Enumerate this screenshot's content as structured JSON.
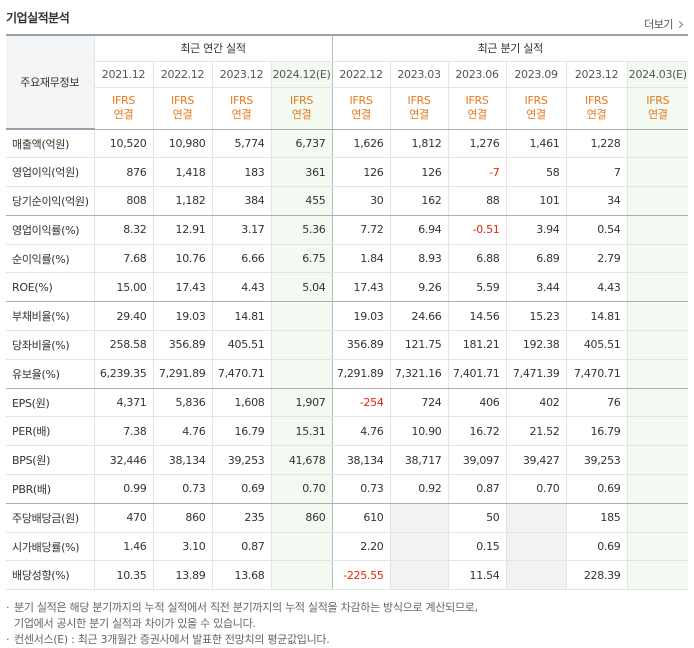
{
  "title": "기업실적분석",
  "more_label": "더보기",
  "row_header_label": "주요재무정보",
  "annual_group_label": "최근 연간 실적",
  "quarter_group_label": "최근 분기 실적",
  "periods": [
    {
      "date": "2021.12",
      "ifrs": "IFRS",
      "basis": "연결",
      "est": false
    },
    {
      "date": "2022.12",
      "ifrs": "IFRS",
      "basis": "연결",
      "est": false
    },
    {
      "date": "2023.12",
      "ifrs": "IFRS",
      "basis": "연결",
      "est": false
    },
    {
      "date": "2024.12(E)",
      "ifrs": "IFRS",
      "basis": "연결",
      "est": true
    },
    {
      "date": "2022.12",
      "ifrs": "IFRS",
      "basis": "연결",
      "est": false
    },
    {
      "date": "2023.03",
      "ifrs": "IFRS",
      "basis": "연결",
      "est": false
    },
    {
      "date": "2023.06",
      "ifrs": "IFRS",
      "basis": "연결",
      "est": false
    },
    {
      "date": "2023.09",
      "ifrs": "IFRS",
      "basis": "연결",
      "est": false
    },
    {
      "date": "2023.12",
      "ifrs": "IFRS",
      "basis": "연결",
      "est": false
    },
    {
      "date": "2024.03(E)",
      "ifrs": "IFRS",
      "basis": "연결",
      "est": true
    }
  ],
  "rows": [
    {
      "label": "매출액(억원)",
      "values": [
        "10,520",
        "10,980",
        "5,774",
        "6,737",
        "1,626",
        "1,812",
        "1,276",
        "1,461",
        "1,228",
        ""
      ]
    },
    {
      "label": "영업이익(억원)",
      "values": [
        "876",
        "1,418",
        "183",
        "361",
        "126",
        "126",
        "-7",
        "58",
        "7",
        ""
      ]
    },
    {
      "label": "당기순이익(억원)",
      "values": [
        "808",
        "1,182",
        "384",
        "455",
        "30",
        "162",
        "88",
        "101",
        "34",
        ""
      ],
      "section_end": true
    },
    {
      "label": "영업이익률(%)",
      "values": [
        "8.32",
        "12.91",
        "3.17",
        "5.36",
        "7.72",
        "6.94",
        "-0.51",
        "3.94",
        "0.54",
        ""
      ]
    },
    {
      "label": "순이익률(%)",
      "values": [
        "7.68",
        "10.76",
        "6.66",
        "6.75",
        "1.84",
        "8.93",
        "6.88",
        "6.89",
        "2.79",
        ""
      ]
    },
    {
      "label": "ROE(%)",
      "values": [
        "15.00",
        "17.43",
        "4.43",
        "5.04",
        "17.43",
        "9.26",
        "5.59",
        "3.44",
        "4.43",
        ""
      ],
      "section_end": true
    },
    {
      "label": "부채비율(%)",
      "values": [
        "29.40",
        "19.03",
        "14.81",
        "",
        "19.03",
        "24.66",
        "14.56",
        "15.23",
        "14.81",
        ""
      ]
    },
    {
      "label": "당좌비율(%)",
      "values": [
        "258.58",
        "356.89",
        "405.51",
        "",
        "356.89",
        "121.75",
        "181.21",
        "192.38",
        "405.51",
        ""
      ]
    },
    {
      "label": "유보율(%)",
      "values": [
        "6,239.35",
        "7,291.89",
        "7,470.71",
        "",
        "7,291.89",
        "7,321.16",
        "7,401.71",
        "7,471.39",
        "7,470.71",
        ""
      ],
      "section_end": true
    },
    {
      "label": "EPS(원)",
      "values": [
        "4,371",
        "5,836",
        "1,608",
        "1,907",
        "-254",
        "724",
        "406",
        "402",
        "76",
        ""
      ]
    },
    {
      "label": "PER(배)",
      "values": [
        "7.38",
        "4.76",
        "16.79",
        "15.31",
        "4.76",
        "10.90",
        "16.72",
        "21.52",
        "16.79",
        ""
      ]
    },
    {
      "label": "BPS(원)",
      "values": [
        "32,446",
        "38,134",
        "39,253",
        "41,678",
        "38,134",
        "38,717",
        "39,097",
        "39,427",
        "39,253",
        ""
      ]
    },
    {
      "label": "PBR(배)",
      "values": [
        "0.99",
        "0.73",
        "0.69",
        "0.70",
        "0.73",
        "0.92",
        "0.87",
        "0.70",
        "0.69",
        ""
      ],
      "section_end": true
    },
    {
      "label": "주당배당금(원)",
      "values": [
        "470",
        "860",
        "235",
        "860",
        "610",
        "",
        "50",
        "",
        "185",
        ""
      ],
      "empty_cols": [
        5,
        7
      ]
    },
    {
      "label": "시가배당률(%)",
      "values": [
        "1.46",
        "3.10",
        "0.87",
        "",
        "2.20",
        "",
        "0.15",
        "",
        "0.69",
        ""
      ],
      "empty_cols": [
        5,
        7
      ]
    },
    {
      "label": "배당성향(%)",
      "values": [
        "10.35",
        "13.89",
        "13.68",
        "",
        "-225.55",
        "",
        "11.54",
        "",
        "228.39",
        ""
      ],
      "empty_cols": [
        5,
        7
      ]
    }
  ],
  "notes": [
    "분기 실적은 해당 분기까지의 누적 실적에서 직전 분기까지의 누적 실적을 차감하는 방식으로 계산되므로,",
    "기업에서 공시한 분기 실적과 차이가 있을 수 있습니다.",
    "컨센서스(E) : 최근 3개월간 증권사에서 발표한 전망치의 평균값입니다."
  ]
}
